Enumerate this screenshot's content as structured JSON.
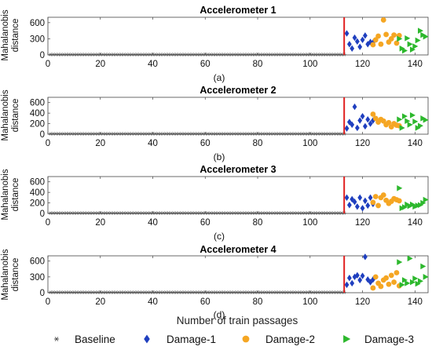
{
  "xlabel": "Number of  train passages",
  "legend": {
    "placement": "bottom",
    "items": [
      {
        "label": "Baseline",
        "marker": "asterisk",
        "color": "#555555"
      },
      {
        "label": "Damage-1",
        "marker": "diamond",
        "color": "#1f3fbf"
      },
      {
        "label": "Damage-2",
        "marker": "circle",
        "color": "#f5a623"
      },
      {
        "label": "Damage-3",
        "marker": "triangle-right",
        "color": "#2db82d"
      }
    ]
  },
  "chart_data": [
    {
      "type": "scatter",
      "title": "Accelerometer 1",
      "subcaption": "(a)",
      "ylabel": "Mahalanobis distance",
      "xlim": [
        0,
        145
      ],
      "ylim": [
        0,
        700
      ],
      "xticks": [
        0,
        20,
        40,
        60,
        80,
        100,
        120,
        140
      ],
      "yticks": [
        0,
        300,
        600
      ],
      "threshold_x": 113,
      "grid": false,
      "series": [
        {
          "name": "Baseline",
          "x_start": 1,
          "x_end": 113,
          "value": 8
        },
        {
          "name": "Damage-1",
          "x": [
            114,
            115,
            116,
            117,
            118,
            119,
            120,
            121,
            122,
            123,
            124
          ],
          "y": [
            400,
            200,
            120,
            320,
            250,
            150,
            280,
            360,
            200,
            240,
            230
          ]
        },
        {
          "name": "Damage-2",
          "x": [
            124,
            125,
            126,
            127,
            128,
            129,
            130,
            131,
            132,
            133,
            134
          ],
          "y": [
            190,
            280,
            350,
            200,
            650,
            380,
            240,
            300,
            370,
            220,
            360
          ]
        },
        {
          "name": "Damage-3",
          "x": [
            134,
            135,
            136,
            137,
            138,
            139,
            140,
            141,
            142,
            143,
            144
          ],
          "y": [
            300,
            120,
            80,
            310,
            200,
            100,
            160,
            270,
            450,
            370,
            340
          ]
        }
      ]
    },
    {
      "type": "scatter",
      "title": "Accelerometer 2",
      "subcaption": "(b)",
      "ylabel": "Mahalanobis distance",
      "xlim": [
        0,
        145
      ],
      "ylim": [
        0,
        700
      ],
      "xticks": [
        0,
        20,
        40,
        60,
        80,
        100,
        120,
        140
      ],
      "yticks": [
        0,
        200,
        400,
        600
      ],
      "threshold_x": 113,
      "grid": false,
      "series": [
        {
          "name": "Baseline",
          "x_start": 1,
          "x_end": 113,
          "value": 8
        },
        {
          "name": "Damage-1",
          "x": [
            114,
            115,
            116,
            117,
            118,
            119,
            120,
            121,
            122,
            123,
            124
          ],
          "y": [
            110,
            230,
            180,
            520,
            120,
            260,
            340,
            150,
            280,
            200,
            260
          ]
        },
        {
          "name": "Damage-2",
          "x": [
            124,
            125,
            126,
            127,
            128,
            129,
            130,
            131,
            132,
            133,
            134
          ],
          "y": [
            380,
            300,
            230,
            280,
            250,
            180,
            220,
            140,
            200,
            170,
            160
          ]
        },
        {
          "name": "Damage-3",
          "x": [
            134,
            135,
            136,
            137,
            138,
            139,
            140,
            141,
            142,
            143,
            144
          ],
          "y": [
            280,
            120,
            340,
            250,
            180,
            360,
            240,
            120,
            160,
            300,
            270
          ]
        }
      ]
    },
    {
      "type": "scatter",
      "title": "Accelerometer 3",
      "subcaption": "(c)",
      "ylabel": "Mahalanobis distance",
      "xlim": [
        0,
        145
      ],
      "ylim": [
        0,
        700
      ],
      "xticks": [
        0,
        20,
        40,
        60,
        80,
        100,
        120,
        140
      ],
      "yticks": [
        0,
        200,
        400,
        600
      ],
      "threshold_x": 113,
      "grid": false,
      "series": [
        {
          "name": "Baseline",
          "x_start": 1,
          "x_end": 113,
          "value": 8
        },
        {
          "name": "Damage-1",
          "x": [
            114,
            115,
            116,
            117,
            118,
            119,
            120,
            121,
            122,
            123,
            124
          ],
          "y": [
            300,
            160,
            270,
            220,
            130,
            300,
            100,
            240,
            150,
            300,
            180
          ]
        },
        {
          "name": "Damage-2",
          "x": [
            124,
            125,
            126,
            127,
            128,
            129,
            130,
            131,
            132,
            133,
            134
          ],
          "y": [
            210,
            320,
            150,
            300,
            350,
            250,
            190,
            230,
            280,
            260,
            240
          ]
        },
        {
          "name": "Damage-3",
          "x": [
            134,
            135,
            136,
            137,
            138,
            139,
            140,
            141,
            142,
            143,
            144
          ],
          "y": [
            480,
            100,
            120,
            170,
            140,
            170,
            130,
            150,
            160,
            200,
            260
          ]
        }
      ]
    },
    {
      "type": "scatter",
      "title": "Accelerometer 4",
      "subcaption": "(d)",
      "ylabel": "Mahalanobis distance",
      "xlim": [
        0,
        145
      ],
      "ylim": [
        0,
        700
      ],
      "xticks": [
        0,
        20,
        40,
        60,
        80,
        100,
        120,
        140
      ],
      "yticks": [
        0,
        300,
        600
      ],
      "threshold_x": 113,
      "grid": false,
      "series": [
        {
          "name": "Baseline",
          "x_start": 1,
          "x_end": 113,
          "value": 8
        },
        {
          "name": "Damage-1",
          "x": [
            114,
            115,
            116,
            117,
            118,
            119,
            120,
            121,
            122,
            123,
            124
          ],
          "y": [
            150,
            280,
            180,
            300,
            330,
            240,
            320,
            680,
            250,
            200,
            250
          ]
        },
        {
          "name": "Damage-2",
          "x": [
            124,
            125,
            126,
            127,
            128,
            129,
            130,
            131,
            132,
            133,
            134
          ],
          "y": [
            90,
            300,
            180,
            120,
            240,
            280,
            160,
            330,
            200,
            380,
            130
          ]
        },
        {
          "name": "Damage-3",
          "x": [
            134,
            135,
            136,
            137,
            138,
            139,
            140,
            141,
            142,
            143,
            144
          ],
          "y": [
            580,
            150,
            240,
            180,
            650,
            200,
            270,
            170,
            220,
            500,
            300
          ]
        }
      ]
    }
  ]
}
